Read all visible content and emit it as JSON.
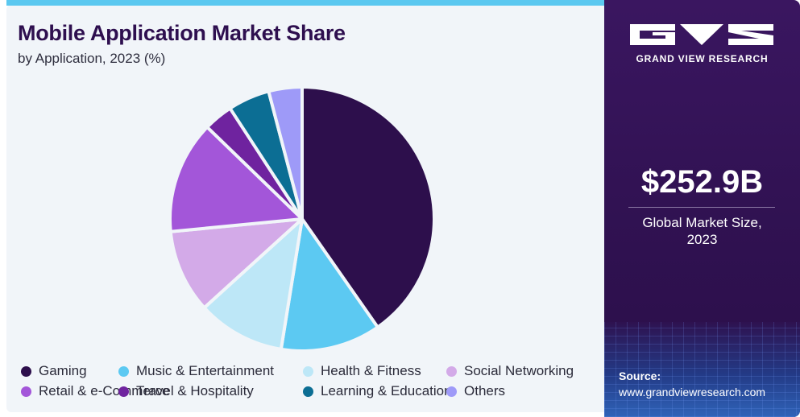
{
  "chart_data": {
    "type": "pie",
    "title": "Mobile Application Market Share",
    "subtitle": "by Application, 2023 (%)",
    "categories": [
      "Gaming",
      "Music & Entertainment",
      "Health & Fitness",
      "Social Networking",
      "Retail & e-Commerce",
      "Travel & Hospitality",
      "Learning & Education",
      "Others"
    ],
    "values": [
      39.5,
      12.0,
      10.5,
      10.0,
      13.5,
      3.5,
      5.0,
      4.0
    ],
    "colors": [
      "#2d0f4c",
      "#5cc9f2",
      "#bde7f7",
      "#d3aae8",
      "#a356d9",
      "#6f239f",
      "#0c6e94",
      "#9e9af8"
    ],
    "legend_position": "bottom"
  },
  "brand": {
    "name": "GRAND VIEW RESEARCH",
    "logo_icon": "gvr-logo-icon"
  },
  "market": {
    "size": "$252.9B",
    "label_line1": "Global Market Size,",
    "label_line2": "2023"
  },
  "source": {
    "label": "Source:",
    "url": "www.grandviewresearch.com"
  },
  "colors": {
    "accent_bar": "#5bc8f0",
    "panel": "#2f1150",
    "title": "#2e0f4f"
  }
}
